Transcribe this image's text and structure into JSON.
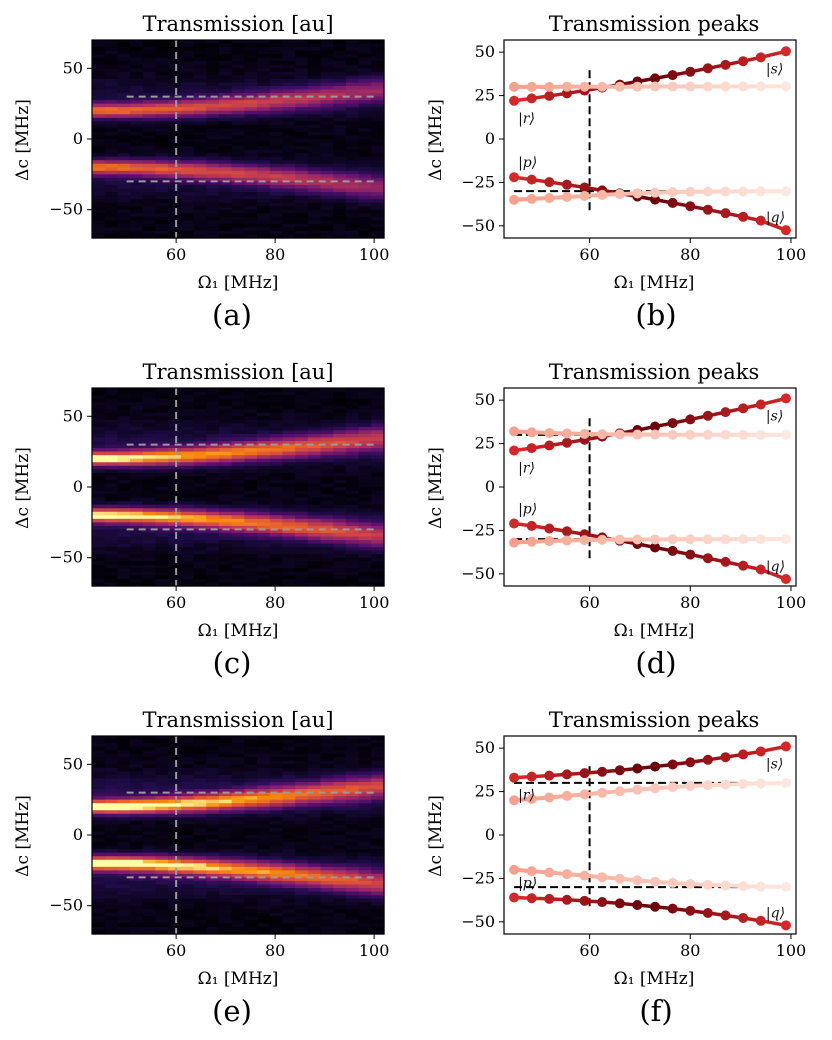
{
  "figure": {
    "captions": [
      "(a)",
      "(b)",
      "(c)",
      "(d)",
      "(e)",
      "(f)"
    ]
  },
  "chart_data": [
    {
      "id": "a",
      "type": "heatmap",
      "title": "Transmission [au]",
      "xlabel": "Ω₁ [MHz]",
      "ylabel": "Δc [MHz]",
      "xlim": [
        43,
        102
      ],
      "ylim": [
        -70,
        70
      ],
      "xticks": [
        60,
        80,
        100
      ],
      "yticks": [
        50,
        0,
        -50
      ],
      "reference_lines": {
        "x": 60,
        "y": [
          30,
          -30
        ]
      },
      "omega1": [
        45,
        47.5,
        50,
        52.5,
        55,
        57.5,
        60,
        62.5,
        65,
        67.5,
        70,
        72.5,
        75,
        77.5,
        80,
        82.5,
        85,
        87.5,
        90,
        92.5,
        95,
        97.5,
        100
      ],
      "branches": [
        "upper",
        "lower"
      ],
      "brightness_scale": 0.72
    },
    {
      "id": "b",
      "type": "scatter",
      "title": "Transmission peaks",
      "xlabel": "Ω₁ [MHz]",
      "ylabel": "Δc [MHz]",
      "xlim": [
        43,
        101
      ],
      "ylim": [
        -57,
        57
      ],
      "xticks": [
        60,
        80,
        100
      ],
      "yticks": [
        50,
        25,
        0,
        -25,
        -50
      ],
      "reference_lines": {
        "x": 60,
        "y": [
          30,
          -30
        ]
      },
      "state_labels": [
        "|s⟩",
        "|r⟩",
        "|p⟩",
        "|q⟩"
      ],
      "omega1": [
        45,
        48.5,
        52,
        55.5,
        59,
        62.5,
        66,
        69.5,
        73,
        76.5,
        80,
        83.5,
        87,
        90.5,
        94,
        99
      ],
      "series": [
        {
          "name": "upper-main",
          "values": [
            22,
            23.4,
            24.8,
            26.3,
            27.9,
            29.6,
            31.3,
            33.1,
            34.9,
            36.8,
            38.7,
            40.7,
            42.7,
            44.8,
            47.0,
            50.5
          ]
        },
        {
          "name": "upper-weak",
          "values": [
            30,
            30,
            30,
            30.1,
            30.1,
            30.1,
            30.1,
            30.1,
            30.2,
            30.2,
            30.2,
            30.2,
            30.2,
            30.2,
            30.3,
            30.3
          ]
        },
        {
          "name": "lower-main",
          "values": [
            -22,
            -23.4,
            -24.8,
            -26.3,
            -27.9,
            -29.6,
            -31.3,
            -33.1,
            -34.9,
            -36.8,
            -38.7,
            -40.7,
            -42.7,
            -44.8,
            -47.0,
            -52.5
          ]
        },
        {
          "name": "lower-weak",
          "values": [
            -35,
            -34.5,
            -34.0,
            -33.4,
            -32.8,
            -32.2,
            -31.7,
            -31.3,
            -30.9,
            -30.6,
            -30.4,
            -30.3,
            -30.2,
            -30.2,
            -30.1,
            -30.1
          ]
        }
      ]
    },
    {
      "id": "c",
      "type": "heatmap",
      "title": "Transmission [au]",
      "xlabel": "Ω₁ [MHz]",
      "ylabel": "Δc [MHz]",
      "xlim": [
        43,
        102
      ],
      "ylim": [
        -70,
        70
      ],
      "xticks": [
        60,
        80,
        100
      ],
      "yticks": [
        50,
        0,
        -50
      ],
      "reference_lines": {
        "x": 60,
        "y": [
          30,
          -30
        ]
      },
      "omega1": [
        45,
        47.5,
        50,
        52.5,
        55,
        57.5,
        60,
        62.5,
        65,
        67.5,
        70,
        72.5,
        75,
        77.5,
        80,
        82.5,
        85,
        87.5,
        90,
        92.5,
        95,
        97.5,
        100
      ],
      "branches": [
        "upper",
        "lower"
      ],
      "brightness_scale": 0.92
    },
    {
      "id": "d",
      "type": "scatter",
      "title": "Transmission peaks",
      "xlabel": "Ω₁ [MHz]",
      "ylabel": "Δc [MHz]",
      "xlim": [
        43,
        101
      ],
      "ylim": [
        -57,
        57
      ],
      "xticks": [
        60,
        80,
        100
      ],
      "yticks": [
        50,
        25,
        0,
        -25,
        -50
      ],
      "reference_lines": {
        "x": 60,
        "y": [
          30,
          -30
        ]
      },
      "state_labels": [
        "|s⟩",
        "|r⟩",
        "|p⟩",
        "|q⟩"
      ],
      "omega1": [
        45,
        48.5,
        52,
        55.5,
        59,
        62.5,
        66,
        69.5,
        73,
        76.5,
        80,
        83.5,
        87,
        90.5,
        94,
        99
      ],
      "series": [
        {
          "name": "upper-main",
          "values": [
            21,
            22.4,
            23.9,
            25.5,
            27.2,
            29.0,
            30.9,
            32.8,
            34.8,
            36.8,
            38.9,
            41.0,
            43.1,
            45.3,
            47.5,
            51.0
          ]
        },
        {
          "name": "upper-weak",
          "values": [
            32,
            31.5,
            31.1,
            30.8,
            30.6,
            30.4,
            30.3,
            30.2,
            30.2,
            30.1,
            30.1,
            30.1,
            30.1,
            30.0,
            30.0,
            30.0
          ]
        },
        {
          "name": "lower-main",
          "values": [
            -21,
            -22.4,
            -23.9,
            -25.5,
            -27.2,
            -29.0,
            -30.9,
            -32.8,
            -34.8,
            -36.8,
            -38.9,
            -41.0,
            -43.1,
            -45.3,
            -47.5,
            -53.0
          ]
        },
        {
          "name": "lower-weak",
          "values": [
            -32,
            -31.5,
            -31.1,
            -30.8,
            -30.6,
            -30.4,
            -30.3,
            -30.2,
            -30.2,
            -30.1,
            -30.1,
            -30.1,
            -30.1,
            -30.0,
            -30.0,
            -30.0
          ]
        }
      ]
    },
    {
      "id": "e",
      "type": "heatmap",
      "title": "Transmission [au]",
      "xlabel": "Ω₁ [MHz]",
      "ylabel": "Δc [MHz]",
      "xlim": [
        43,
        102
      ],
      "ylim": [
        -70,
        70
      ],
      "xticks": [
        60,
        80,
        100
      ],
      "yticks": [
        50,
        0,
        -50
      ],
      "reference_lines": {
        "x": 60,
        "y": [
          30,
          -30
        ]
      },
      "omega1": [
        45,
        47.5,
        50,
        52.5,
        55,
        57.5,
        60,
        62.5,
        65,
        67.5,
        70,
        72.5,
        75,
        77.5,
        80,
        82.5,
        85,
        87.5,
        90,
        92.5,
        95,
        97.5,
        100
      ],
      "branches": [
        "upper",
        "lower"
      ],
      "brightness_scale": 1.0
    },
    {
      "id": "f",
      "type": "scatter",
      "title": "Transmission peaks",
      "xlabel": "Ω₁ [MHz]",
      "ylabel": "Δc [MHz]",
      "xlim": [
        43,
        101
      ],
      "ylim": [
        -57,
        57
      ],
      "xticks": [
        60,
        80,
        100
      ],
      "yticks": [
        50,
        25,
        0,
        -25,
        -50
      ],
      "reference_lines": {
        "x": 60,
        "y": [
          30,
          -30
        ]
      },
      "state_labels": [
        "|s⟩",
        "|r⟩",
        "|p⟩",
        "|q⟩"
      ],
      "omega1": [
        45,
        48.5,
        52,
        55.5,
        59,
        62.5,
        66,
        69.5,
        73,
        76.5,
        80,
        83.5,
        87,
        90.5,
        94,
        99
      ],
      "series": [
        {
          "name": "upper-main",
          "values": [
            33,
            33.6,
            34.2,
            34.9,
            35.6,
            36.4,
            37.3,
            38.3,
            39.4,
            40.6,
            41.9,
            43.3,
            44.8,
            46.4,
            48.1,
            51.0
          ]
        },
        {
          "name": "upper-weak",
          "values": [
            20,
            20.8,
            21.6,
            22.5,
            23.4,
            24.3,
            25.2,
            26.1,
            26.9,
            27.6,
            28.2,
            28.7,
            29.1,
            29.4,
            29.7,
            29.9
          ]
        },
        {
          "name": "lower-main",
          "values": [
            -36,
            -36.4,
            -36.8,
            -37.3,
            -37.9,
            -38.6,
            -39.4,
            -40.3,
            -41.3,
            -42.4,
            -43.6,
            -44.9,
            -46.3,
            -47.8,
            -49.4,
            -52.0
          ]
        },
        {
          "name": "lower-weak",
          "values": [
            -20,
            -20.8,
            -21.6,
            -22.5,
            -23.4,
            -24.3,
            -25.2,
            -26.1,
            -26.9,
            -27.6,
            -28.2,
            -28.7,
            -29.1,
            -29.4,
            -29.7,
            -29.9
          ]
        }
      ]
    }
  ]
}
